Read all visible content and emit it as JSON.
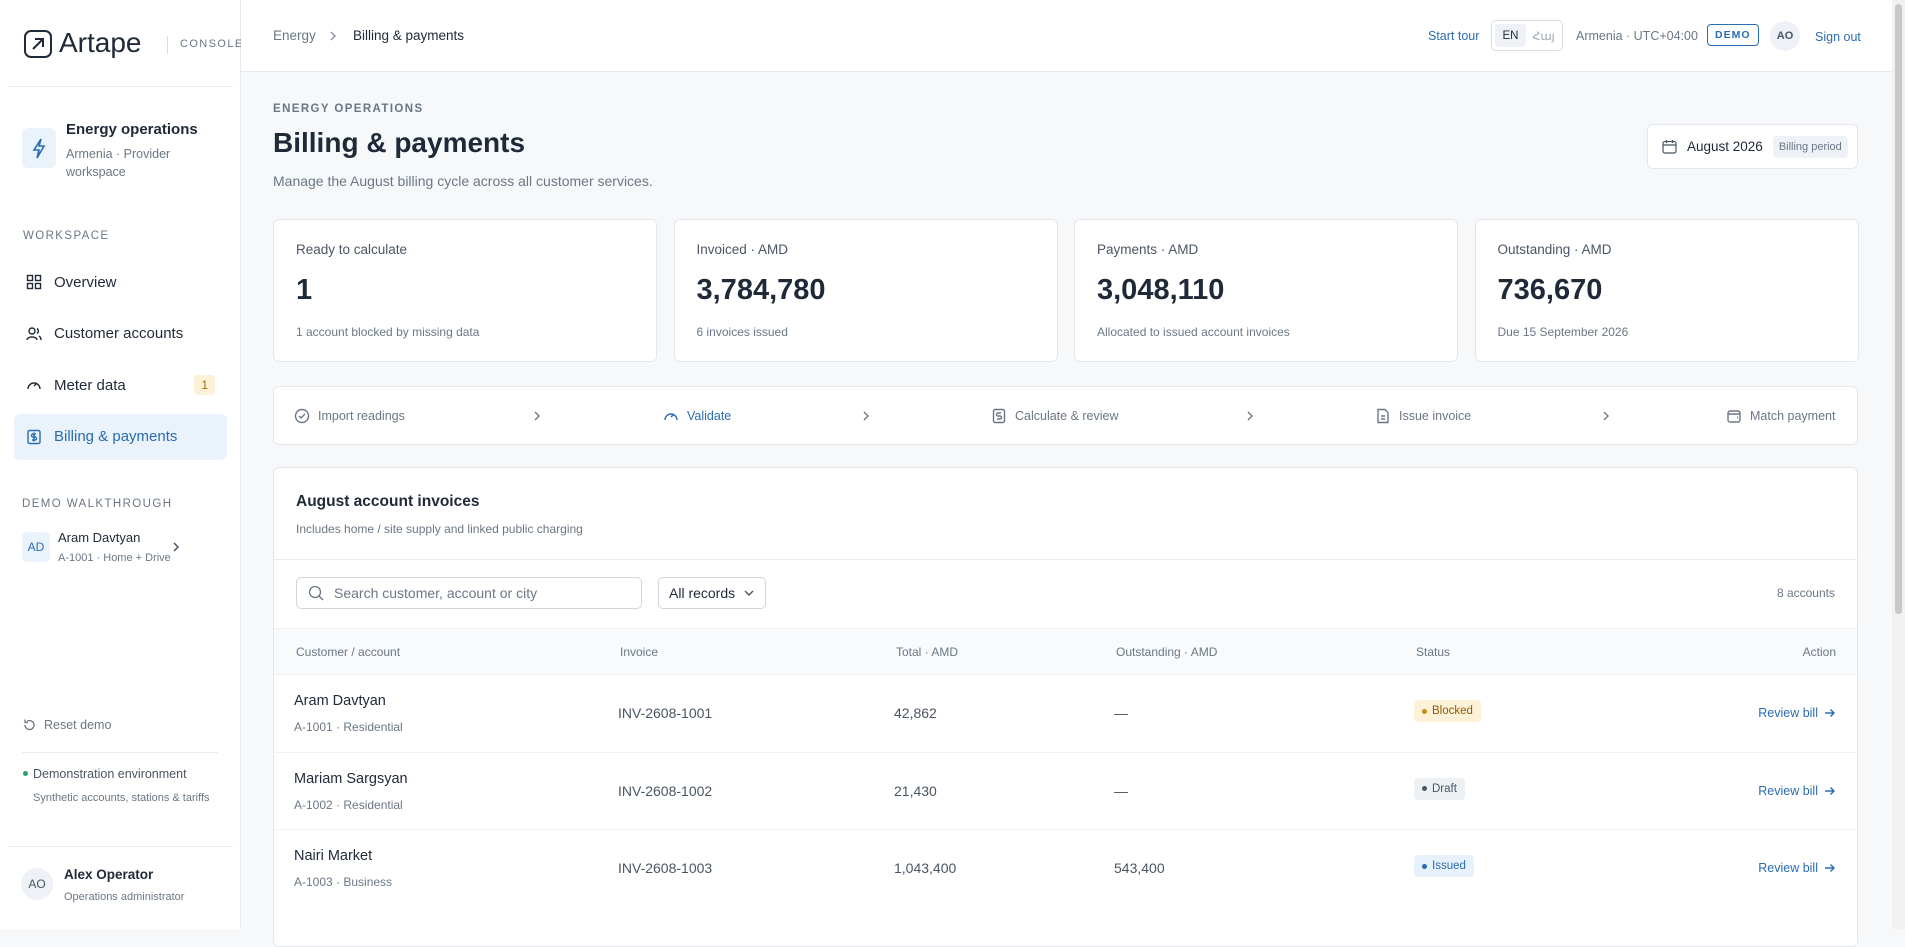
{
  "brand": {
    "name": "Artape",
    "tag": "CONSOLE"
  },
  "sidebar": {
    "workspace": {
      "title": "Energy operations",
      "subtitle": "Armenia · Provider workspace"
    },
    "section_label": "WORKSPACE",
    "nav": [
      {
        "label": "Overview"
      },
      {
        "label": "Customer accounts"
      },
      {
        "label": "Meter data",
        "badge": 1
      },
      {
        "label": "Billing & payments"
      }
    ],
    "demo": {
      "label": "DEMO WALKTHROUGH",
      "initials": "AD",
      "name": "Aram Davtyan",
      "detail": "A-1001 · Home + Drive"
    },
    "reset": "Reset demo",
    "environment": {
      "title": "Demonstration environment",
      "detail": "Synthetic accounts, stations & tariffs"
    },
    "user": {
      "initials": "AO",
      "name": "Alex Operator",
      "role": "Operations administrator"
    }
  },
  "header": {
    "breadcrumb": [
      "Energy",
      "Billing & payments"
    ],
    "start_tour": "Start tour",
    "languages": [
      "EN",
      "Հայ"
    ],
    "timezone": "Armenia · UTC+04:00",
    "demo_badge": "DEMO",
    "initials": "AO",
    "sign_out": "Sign out"
  },
  "page": {
    "eyebrow": "ENERGY OPERATIONS",
    "title": "Billing & payments",
    "subtitle": "Manage the August billing cycle across all customer services.",
    "period": {
      "label": "August 2026",
      "tag": "Billing period"
    }
  },
  "kpis": [
    {
      "label": "Ready to calculate",
      "value": "1",
      "note": "1 account blocked by missing data"
    },
    {
      "label": "Invoiced · AMD",
      "value": "3,784,780",
      "note": "6 invoices issued"
    },
    {
      "label": "Payments · AMD",
      "value": "3,048,110",
      "note": "Allocated to issued account invoices"
    },
    {
      "label": "Outstanding · AMD",
      "value": "736,670",
      "note": "Due 15 September 2026"
    }
  ],
  "steps": [
    "Import readings",
    "Validate",
    "Calculate & review",
    "Issue invoice",
    "Match payment"
  ],
  "invoices": {
    "title": "August account invoices",
    "subtitle": "Includes home / site supply and linked public charging",
    "search_placeholder": "Search customer, account or city",
    "filter": "All records",
    "count": "8 accounts",
    "columns": [
      "Customer / account",
      "Invoice",
      "Total · AMD",
      "Outstanding · AMD",
      "Status",
      "Action"
    ],
    "rows": [
      {
        "name": "Aram Davtyan",
        "account": "A-1001 · Residential",
        "invoice": "INV-2608-1001",
        "total": "42,862",
        "outstanding": "—",
        "status": "Blocked",
        "action": "Review bill"
      },
      {
        "name": "Mariam Sargsyan",
        "account": "A-1002 · Residential",
        "invoice": "INV-2608-1002",
        "total": "21,430",
        "outstanding": "—",
        "status": "Draft",
        "action": "Review bill"
      },
      {
        "name": "Nairi Market",
        "account": "A-1003 · Business",
        "invoice": "INV-2608-1003",
        "total": "1,043,400",
        "outstanding": "543,400",
        "status": "Issued",
        "action": "Review bill"
      }
    ]
  }
}
